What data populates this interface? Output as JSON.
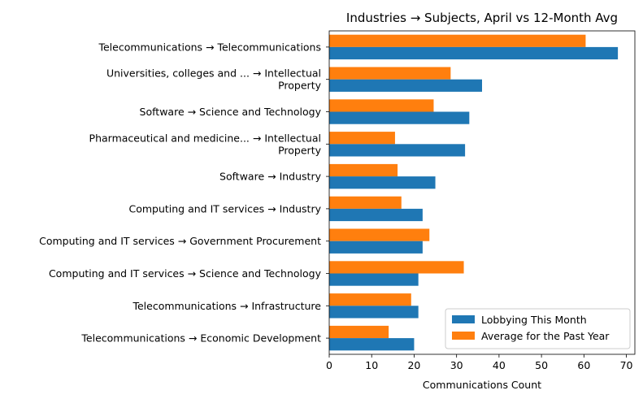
{
  "chart_data": {
    "type": "bar",
    "orientation": "horizontal",
    "title": "Industries → Subjects, April vs 12-Month Avg",
    "xlabel": "Communications Count",
    "ylabel": "",
    "xlim": [
      0,
      72
    ],
    "xticks": [
      0,
      10,
      20,
      30,
      40,
      50,
      60,
      70
    ],
    "grid": false,
    "legend_position": "lower-right",
    "categories": [
      [
        "Telecommunications → Telecommunications"
      ],
      [
        "Universities, colleges and ... → Intellectual",
        "Property"
      ],
      [
        "Software → Science and Technology"
      ],
      [
        "Pharmaceutical and medicine... → Intellectual",
        "Property"
      ],
      [
        "Software → Industry"
      ],
      [
        "Computing and IT services → Industry"
      ],
      [
        "Computing and IT services → Government Procurement"
      ],
      [
        "Computing and IT services → Science and Technology"
      ],
      [
        "Telecommunications → Infrastructure"
      ],
      [
        "Telecommunications → Economic Development"
      ]
    ],
    "series": [
      {
        "name": "Lobbying This Month",
        "color": "#1f77b4",
        "values": [
          68,
          36,
          33,
          32,
          25,
          22,
          22,
          21,
          21,
          20
        ]
      },
      {
        "name": "Average for the Past Year",
        "color": "#ff7f0e",
        "values": [
          60.4,
          28.6,
          24.6,
          15.5,
          16.1,
          17.0,
          23.6,
          31.7,
          19.3,
          14.0
        ]
      }
    ]
  }
}
